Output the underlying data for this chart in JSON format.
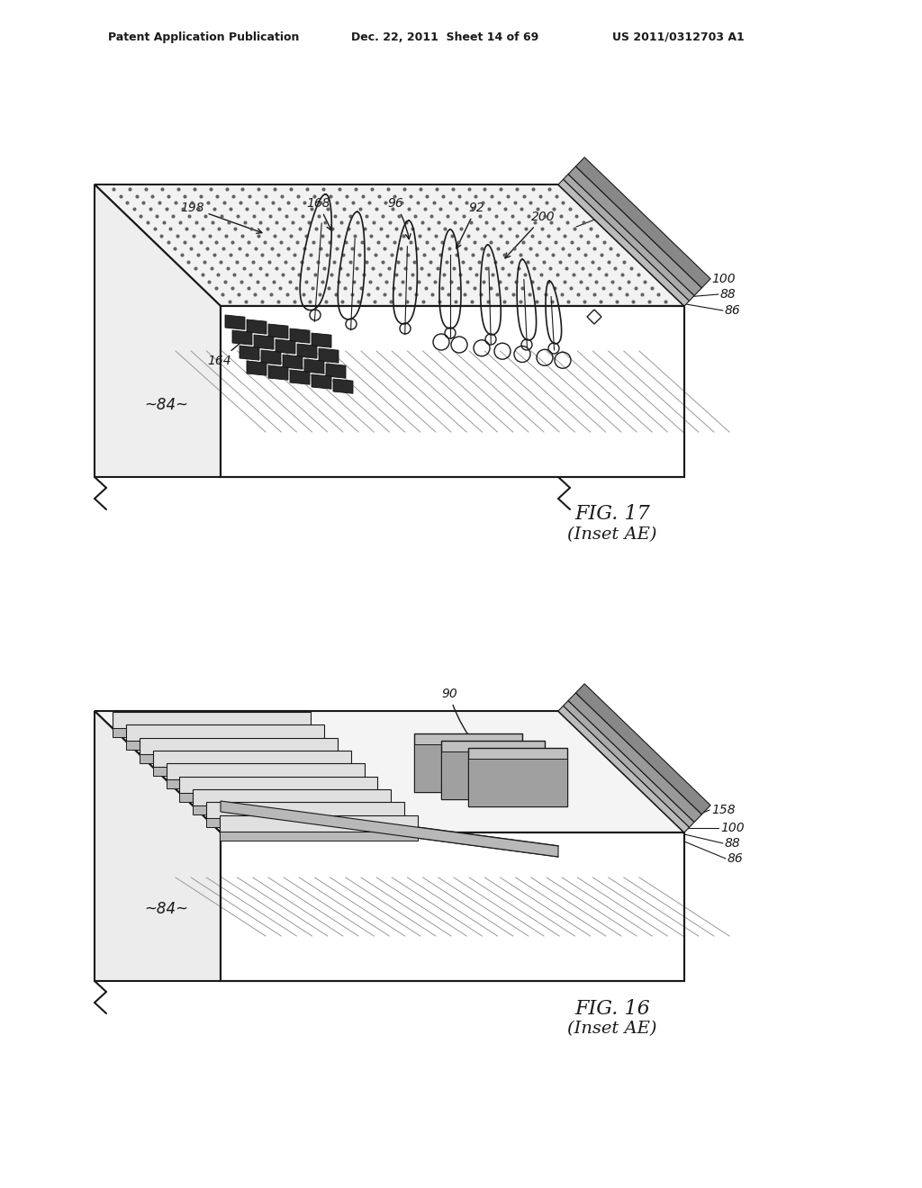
{
  "bg_color": "#ffffff",
  "header_text_left": "Patent Application Publication",
  "header_text_mid": "Dec. 22, 2011  Sheet 14 of 69",
  "header_text_right": "US 2011/0312703 A1",
  "fig16_caption": "FIG. 16",
  "fig16_sub": "(Inset AE)",
  "fig17_caption": "FIG. 17",
  "fig17_sub": "(Inset AE)",
  "dark": "#1a1a1a",
  "light_gray": "#f0f0f0",
  "mid_gray": "#c8c8c8",
  "hatch_color": "#888888"
}
